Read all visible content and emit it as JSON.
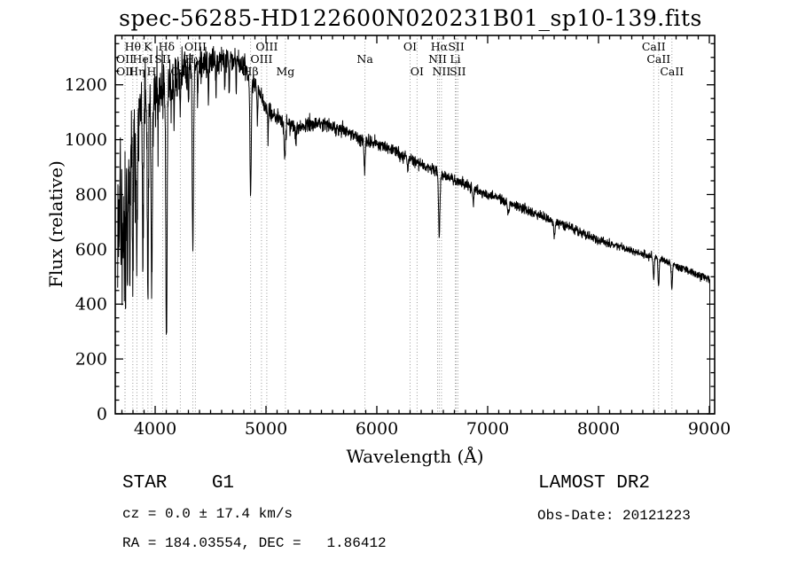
{
  "title": "spec-56285-HD122600N020231B01_sp10-139.fits",
  "footer": {
    "class_label": "STAR    G1",
    "survey": "LAMOST DR2",
    "cz": "cz = 0.0 ± 17.4 km/s",
    "obs_date": "Obs-Date: 20121223",
    "radec": "RA = 184.03554, DEC =   1.86412"
  },
  "chart_data": {
    "type": "line",
    "title": "spec-56285-HD122600N020231B01_sp10-139.fits",
    "xlabel": "Wavelength (Å)",
    "ylabel": "Flux (relative)",
    "xlim": [
      3640,
      9048
    ],
    "ylim": [
      0,
      1380
    ],
    "xticks": [
      4000,
      5000,
      6000,
      7000,
      8000,
      9000
    ],
    "yticks": [
      0,
      200,
      400,
      600,
      800,
      1000,
      1200
    ],
    "x_minor_step": 100,
    "y_minor_step": 50,
    "grid": false,
    "legend": "none",
    "colors": {
      "spectrum": "#000000",
      "marker_lines": "#9a9a9a",
      "axis": "#000000",
      "background": "#ffffff"
    },
    "spectral_lines": [
      {
        "label": "Hθ",
        "wavelength": 3798,
        "row": 0
      },
      {
        "label": "K",
        "wavelength": 3934,
        "row": 0
      },
      {
        "label": "Hδ",
        "wavelength": 4102,
        "row": 0
      },
      {
        "label": "OIII",
        "wavelength": 4363,
        "row": 0
      },
      {
        "label": "OIII",
        "wavelength": 5007,
        "row": 0
      },
      {
        "label": "OI",
        "wavelength": 6300,
        "row": 0
      },
      {
        "label": "Hα",
        "wavelength": 6563,
        "row": 0
      },
      {
        "label": "SII",
        "wavelength": 6717,
        "row": 0
      },
      {
        "label": "CaII",
        "wavelength": 8498,
        "row": 0
      },
      {
        "label": "OII",
        "wavelength": 3727,
        "row": 1
      },
      {
        "label": "HeI",
        "wavelength": 3889,
        "row": 1
      },
      {
        "label": "SII",
        "wavelength": 4068,
        "row": 1
      },
      {
        "label": "Hγ",
        "wavelength": 4340,
        "row": 1
      },
      {
        "label": "OIII",
        "wavelength": 4959,
        "row": 1
      },
      {
        "label": "Na",
        "wavelength": 5893,
        "row": 1
      },
      {
        "label": "NII",
        "wavelength": 6548,
        "row": 1
      },
      {
        "label": "Li",
        "wavelength": 6708,
        "row": 1
      },
      {
        "label": "CaII",
        "wavelength": 8542,
        "row": 1
      },
      {
        "label": "OII",
        "wavelength": 3729,
        "row": 2
      },
      {
        "label": "Hη",
        "wavelength": 3835,
        "row": 2
      },
      {
        "label": "H",
        "wavelength": 3968,
        "row": 2
      },
      {
        "label": "CaI",
        "wavelength": 4227,
        "row": 2
      },
      {
        "label": "Hβ",
        "wavelength": 4861,
        "row": 2
      },
      {
        "label": "Mg",
        "wavelength": 5175,
        "row": 2
      },
      {
        "label": "OI",
        "wavelength": 6363,
        "row": 2
      },
      {
        "label": "NII",
        "wavelength": 6583,
        "row": 2
      },
      {
        "label": "SII",
        "wavelength": 6731,
        "row": 2
      },
      {
        "label": "CaII",
        "wavelength": 8662,
        "row": 2
      }
    ],
    "spectrum_model": {
      "x_start": 3662,
      "x_end": 9004,
      "x_step": 2,
      "noise_seed": 13,
      "red_cutoff_flux": 4,
      "continuum": [
        [
          3660,
          780
        ],
        [
          3700,
          850
        ],
        [
          3740,
          920
        ],
        [
          3780,
          990
        ],
        [
          3820,
          1050
        ],
        [
          3860,
          1095
        ],
        [
          3900,
          1130
        ],
        [
          3950,
          1160
        ],
        [
          4000,
          1185
        ],
        [
          4100,
          1215
        ],
        [
          4200,
          1240
        ],
        [
          4300,
          1262
        ],
        [
          4400,
          1280
        ],
        [
          4500,
          1292
        ],
        [
          4650,
          1298
        ],
        [
          4750,
          1285
        ],
        [
          4850,
          1240
        ],
        [
          4950,
          1160
        ],
        [
          5000,
          1115
        ],
        [
          5100,
          1078
        ],
        [
          5200,
          1055
        ],
        [
          5350,
          1048
        ],
        [
          5500,
          1058
        ],
        [
          5600,
          1048
        ],
        [
          5700,
          1032
        ],
        [
          5800,
          1012
        ],
        [
          5900,
          992
        ],
        [
          6000,
          984
        ],
        [
          6100,
          972
        ],
        [
          6200,
          950
        ],
        [
          6300,
          930
        ],
        [
          6400,
          906
        ],
        [
          6500,
          890
        ],
        [
          6600,
          870
        ],
        [
          6700,
          852
        ],
        [
          6800,
          832
        ],
        [
          6900,
          815
        ],
        [
          7000,
          800
        ],
        [
          7100,
          785
        ],
        [
          7200,
          768
        ],
        [
          7300,
          751
        ],
        [
          7400,
          734
        ],
        [
          7500,
          717
        ],
        [
          7600,
          701
        ],
        [
          7700,
          686
        ],
        [
          7800,
          669
        ],
        [
          7900,
          651
        ],
        [
          8000,
          634
        ],
        [
          8100,
          621
        ],
        [
          8200,
          609
        ],
        [
          8300,
          596
        ],
        [
          8400,
          583
        ],
        [
          8500,
          571
        ],
        [
          8600,
          557
        ],
        [
          8700,
          541
        ],
        [
          8800,
          523
        ],
        [
          8900,
          506
        ],
        [
          9000,
          489
        ],
        [
          9004,
          488
        ]
      ],
      "noise_amplitude": [
        [
          3660,
          120
        ],
        [
          3700,
          112
        ],
        [
          3750,
          100
        ],
        [
          3800,
          92
        ],
        [
          3850,
          82
        ],
        [
          3900,
          74
        ],
        [
          3950,
          66
        ],
        [
          4000,
          58
        ],
        [
          4100,
          48
        ],
        [
          4200,
          40
        ],
        [
          4300,
          34
        ],
        [
          4400,
          30
        ],
        [
          4600,
          25
        ],
        [
          4800,
          21
        ],
        [
          5000,
          18
        ],
        [
          5200,
          16
        ],
        [
          5500,
          13
        ],
        [
          6000,
          11
        ],
        [
          6500,
          10
        ],
        [
          7000,
          9
        ],
        [
          7500,
          8
        ],
        [
          8000,
          8
        ],
        [
          8500,
          7
        ],
        [
          9000,
          7
        ]
      ],
      "absorption_lines": [
        {
          "center": 3692,
          "sigma": 3,
          "depth": 260
        },
        {
          "center": 3704,
          "sigma": 3,
          "depth": 290
        },
        {
          "center": 3712,
          "sigma": 3,
          "depth": 310
        },
        {
          "center": 3722,
          "sigma": 3.2,
          "depth": 340
        },
        {
          "center": 3734,
          "sigma": 3.5,
          "depth": 390
        },
        {
          "center": 3750,
          "sigma": 4,
          "depth": 430
        },
        {
          "center": 3771,
          "sigma": 4,
          "depth": 460
        },
        {
          "center": 3798,
          "sigma": 4.5,
          "depth": 505
        },
        {
          "center": 3819,
          "sigma": 3,
          "depth": 190
        },
        {
          "center": 3835,
          "sigma": 4.5,
          "depth": 545
        },
        {
          "center": 3889,
          "sigma": 5,
          "depth": 585
        },
        {
          "center": 3934,
          "sigma": 5,
          "depth": 725
        },
        {
          "center": 3969,
          "sigma": 5.5,
          "depth": 770
        },
        {
          "center": 4026,
          "sigma": 3,
          "depth": 190
        },
        {
          "center": 4102,
          "sigma": 6,
          "depth": 955
        },
        {
          "center": 4144,
          "sigma": 3,
          "depth": 160
        },
        {
          "center": 4172,
          "sigma": 3,
          "depth": 150
        },
        {
          "center": 4227,
          "sigma": 3,
          "depth": 175
        },
        {
          "center": 4300,
          "sigma": 3,
          "depth": 140
        },
        {
          "center": 4340,
          "sigma": 6,
          "depth": 655
        },
        {
          "center": 4383,
          "sigma": 3,
          "depth": 175
        },
        {
          "center": 4481,
          "sigma": 3,
          "depth": 165
        },
        {
          "center": 4549,
          "sigma": 3,
          "depth": 140
        },
        {
          "center": 4629,
          "sigma": 3,
          "depth": 120
        },
        {
          "center": 4668,
          "sigma": 3,
          "depth": 130
        },
        {
          "center": 4731,
          "sigma": 3,
          "depth": 110
        },
        {
          "center": 4861,
          "sigma": 6,
          "depth": 435
        },
        {
          "center": 4922,
          "sigma": 3,
          "depth": 120
        },
        {
          "center": 5018,
          "sigma": 3,
          "depth": 100
        },
        {
          "center": 5170,
          "sigma": 7,
          "depth": 130
        },
        {
          "center": 5270,
          "sigma": 4,
          "depth": 80
        },
        {
          "center": 5890,
          "sigma": 5,
          "depth": 112
        },
        {
          "center": 6278,
          "sigma": 4,
          "depth": 55
        },
        {
          "center": 6563,
          "sigma": 6,
          "depth": 232
        },
        {
          "center": 6870,
          "sigma": 5,
          "depth": 55
        },
        {
          "center": 7186,
          "sigma": 6,
          "depth": 40
        },
        {
          "center": 7602,
          "sigma": 6,
          "depth": 55
        },
        {
          "center": 8498,
          "sigma": 5,
          "depth": 82
        },
        {
          "center": 8542,
          "sigma": 5,
          "depth": 100
        },
        {
          "center": 8662,
          "sigma": 5,
          "depth": 90
        }
      ]
    }
  }
}
